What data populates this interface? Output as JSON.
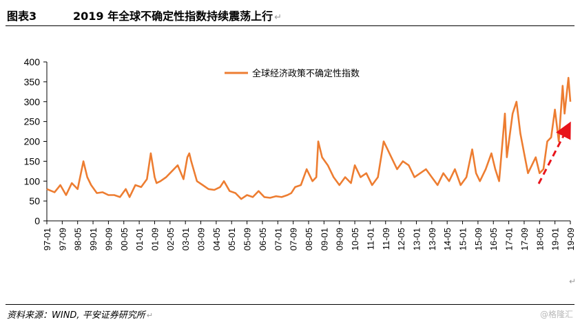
{
  "header": {
    "figure_number": "图表3",
    "title": "2019 年全球不确定性指数持续震荡上行",
    "return_mark": "↵"
  },
  "footer": {
    "source": "资料来源：WIND, 平安证券研究所",
    "watermark": "@格隆汇"
  },
  "chart_data": {
    "type": "line",
    "title": "",
    "xlabel": "",
    "ylabel": "",
    "ylim": [
      0,
      400
    ],
    "yticks": [
      0,
      50,
      100,
      150,
      200,
      250,
      300,
      350,
      400
    ],
    "xticks": [
      "97-01",
      "97-09",
      "98-05",
      "99-01",
      "99-09",
      "00-05",
      "01-01",
      "01-09",
      "02-05",
      "03-01",
      "03-09",
      "04-05",
      "05-01",
      "05-09",
      "06-05",
      "07-01",
      "07-09",
      "08-05",
      "09-01",
      "09-09",
      "10-05",
      "11-01",
      "11-09",
      "12-05",
      "13-01",
      "13-09",
      "14-05",
      "15-01",
      "15-09",
      "16-05",
      "17-01",
      "17-09",
      "18-05",
      "19-01",
      "19-09"
    ],
    "x_range": [
      "1997-01",
      "2019-09"
    ],
    "grid": false,
    "legend_position": "top-center",
    "color": "#ED7D31",
    "annotation_color": "#E8141B",
    "series": [
      {
        "name": "全球经济政策不确定性指数",
        "x": [
          "1997-01",
          "1997-05",
          "1997-08",
          "1997-11",
          "1998-02",
          "1998-05",
          "1998-08",
          "1998-10",
          "1998-12",
          "1999-03",
          "1999-06",
          "1999-09",
          "1999-12",
          "2000-03",
          "2000-06",
          "2000-08",
          "2000-11",
          "2001-02",
          "2001-05",
          "2001-07",
          "2001-09",
          "2001-10",
          "2001-12",
          "2002-03",
          "2002-06",
          "2002-09",
          "2002-12",
          "2003-02",
          "2003-03",
          "2003-04",
          "2003-07",
          "2003-10",
          "2004-01",
          "2004-04",
          "2004-07",
          "2004-09",
          "2004-12",
          "2005-03",
          "2005-06",
          "2005-09",
          "2005-12",
          "2006-03",
          "2006-06",
          "2006-09",
          "2006-12",
          "2007-03",
          "2007-06",
          "2007-08",
          "2007-10",
          "2008-01",
          "2008-04",
          "2008-07",
          "2008-09",
          "2008-10",
          "2008-12",
          "2009-03",
          "2009-06",
          "2009-09",
          "2009-12",
          "2010-03",
          "2010-05",
          "2010-08",
          "2010-11",
          "2011-02",
          "2011-05",
          "2011-08",
          "2011-10",
          "2011-12",
          "2012-03",
          "2012-06",
          "2012-09",
          "2012-12",
          "2013-03",
          "2013-06",
          "2013-09",
          "2013-12",
          "2014-03",
          "2014-06",
          "2014-09",
          "2014-12",
          "2015-03",
          "2015-06",
          "2015-08",
          "2015-10",
          "2016-01",
          "2016-04",
          "2016-06",
          "2016-08",
          "2016-11",
          "2016-12",
          "2017-03",
          "2017-05",
          "2017-07",
          "2017-09",
          "2017-11",
          "2018-01",
          "2018-03",
          "2018-05",
          "2018-07",
          "2018-09",
          "2018-11",
          "2019-01",
          "2019-03",
          "2019-05",
          "2019-06",
          "2019-08",
          "2019-09"
        ],
        "y": [
          80,
          72,
          90,
          65,
          95,
          80,
          150,
          110,
          90,
          70,
          72,
          65,
          65,
          60,
          80,
          60,
          90,
          85,
          105,
          170,
          110,
          95,
          100,
          110,
          125,
          140,
          105,
          160,
          170,
          150,
          100,
          90,
          80,
          78,
          85,
          100,
          75,
          70,
          55,
          65,
          60,
          75,
          60,
          58,
          62,
          60,
          65,
          70,
          85,
          90,
          130,
          100,
          110,
          200,
          160,
          140,
          110,
          90,
          110,
          95,
          140,
          110,
          120,
          90,
          110,
          200,
          180,
          160,
          130,
          150,
          140,
          110,
          120,
          130,
          110,
          90,
          120,
          100,
          130,
          90,
          110,
          180,
          120,
          100,
          130,
          170,
          130,
          100,
          270,
          160,
          270,
          300,
          220,
          170,
          120,
          140,
          160,
          120,
          130,
          200,
          210,
          280,
          200,
          340,
          270,
          360,
          300
        ]
      }
    ]
  }
}
